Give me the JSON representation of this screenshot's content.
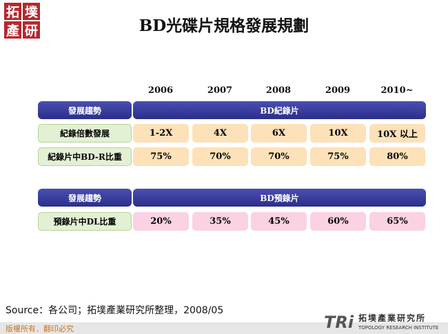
{
  "header": {
    "title": "BD光碟片規格發展規劃",
    "logo": [
      "拓",
      "墣",
      "產",
      "研"
    ]
  },
  "table": {
    "years": [
      "2006",
      "2007",
      "2008",
      "2009",
      "2010~"
    ],
    "sections": [
      {
        "trend_label": "發展趨勢",
        "trend": "BD紀錄片",
        "rows": [
          {
            "label": "紀錄倍數發展",
            "cells": [
              "1-2X",
              "4X",
              "6X",
              "10X",
              "10X 以上"
            ]
          },
          {
            "label": "紀錄片中BD-R比重",
            "cells": [
              "75%",
              "70%",
              "70%",
              "75%",
              "80%"
            ]
          }
        ]
      },
      {
        "trend_label": "發展趨勢",
        "trend": "BD預錄片",
        "rows": [
          {
            "label": "預錄片中DL比重",
            "cells": [
              "20%",
              "35%",
              "45%",
              "60%",
              "65%"
            ]
          }
        ]
      }
    ]
  },
  "source": "Source：各公司；拓墣產業研究所整理，2008/05",
  "footer": {
    "copyright": "版權所有．翻印必究",
    "brand": "TRi",
    "brand_name": "拓墣產業研究所",
    "brand_sub": "TOPOLOGY RESEARCH INSTITUTE"
  }
}
